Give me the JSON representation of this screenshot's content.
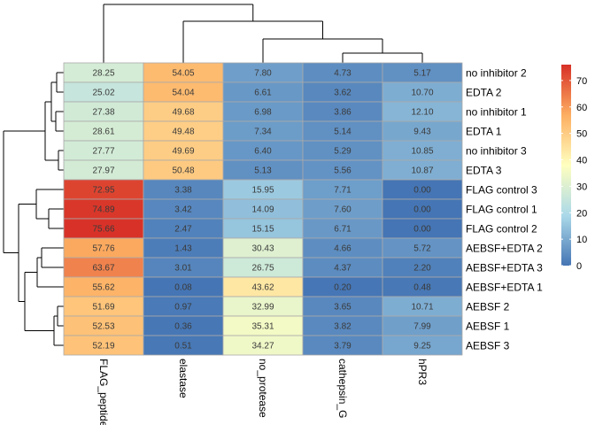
{
  "chart_data": {
    "type": "heatmap",
    "title": "",
    "columns": [
      "FLAG_peptide",
      "elastase",
      "no_protease",
      "cathepsin_G",
      "hPR3"
    ],
    "rows": [
      {
        "label": "no inhibitor 2",
        "values": [
          28.25,
          54.05,
          7.8,
          4.73,
          5.17
        ]
      },
      {
        "label": "EDTA 2",
        "values": [
          25.02,
          54.04,
          6.61,
          3.62,
          10.7
        ]
      },
      {
        "label": "no inhibitor 1",
        "values": [
          27.38,
          49.68,
          6.98,
          3.86,
          12.1
        ]
      },
      {
        "label": "EDTA 1",
        "values": [
          28.61,
          49.48,
          7.34,
          5.14,
          9.43
        ]
      },
      {
        "label": "no inhibitor 3",
        "values": [
          27.77,
          49.69,
          6.4,
          5.29,
          10.85
        ]
      },
      {
        "label": "EDTA 3",
        "values": [
          27.97,
          50.48,
          5.13,
          5.56,
          10.87
        ]
      },
      {
        "label": "FLAG control 3",
        "values": [
          72.95,
          3.38,
          15.95,
          7.71,
          0.0
        ]
      },
      {
        "label": "FLAG control 1",
        "values": [
          74.89,
          3.42,
          14.09,
          7.6,
          0.0
        ]
      },
      {
        "label": "FLAG control 2",
        "values": [
          75.66,
          2.47,
          15.15,
          6.71,
          0.0
        ]
      },
      {
        "label": "AEBSF+EDTA 2",
        "values": [
          57.76,
          1.43,
          30.43,
          4.66,
          5.72
        ]
      },
      {
        "label": "AEBSF+EDTA 3",
        "values": [
          63.67,
          3.01,
          26.75,
          4.37,
          2.2
        ]
      },
      {
        "label": "AEBSF+EDTA 1",
        "values": [
          55.62,
          0.08,
          43.62,
          0.2,
          0.48
        ]
      },
      {
        "label": "AEBSF 2",
        "values": [
          51.69,
          0.97,
          32.99,
          3.65,
          10.71
        ]
      },
      {
        "label": "AEBSF 1",
        "values": [
          52.53,
          0.36,
          35.31,
          3.82,
          7.99
        ]
      },
      {
        "label": "AEBSF 3",
        "values": [
          52.19,
          0.51,
          34.27,
          3.79,
          9.25
        ]
      }
    ],
    "color_scale": {
      "min": 0,
      "max": 76,
      "stops": [
        {
          "value": 0,
          "color": "#4575B4"
        },
        {
          "value": 19,
          "color": "#ABD9E9"
        },
        {
          "value": 38,
          "color": "#FFFFBF"
        },
        {
          "value": 57,
          "color": "#FDAE61"
        },
        {
          "value": 76,
          "color": "#D73027"
        }
      ]
    },
    "legend": {
      "position": "right",
      "ticks": [
        0,
        10,
        20,
        30,
        40,
        50,
        60,
        70
      ]
    },
    "dendrogram": {
      "columns": true,
      "rows": true
    }
  }
}
